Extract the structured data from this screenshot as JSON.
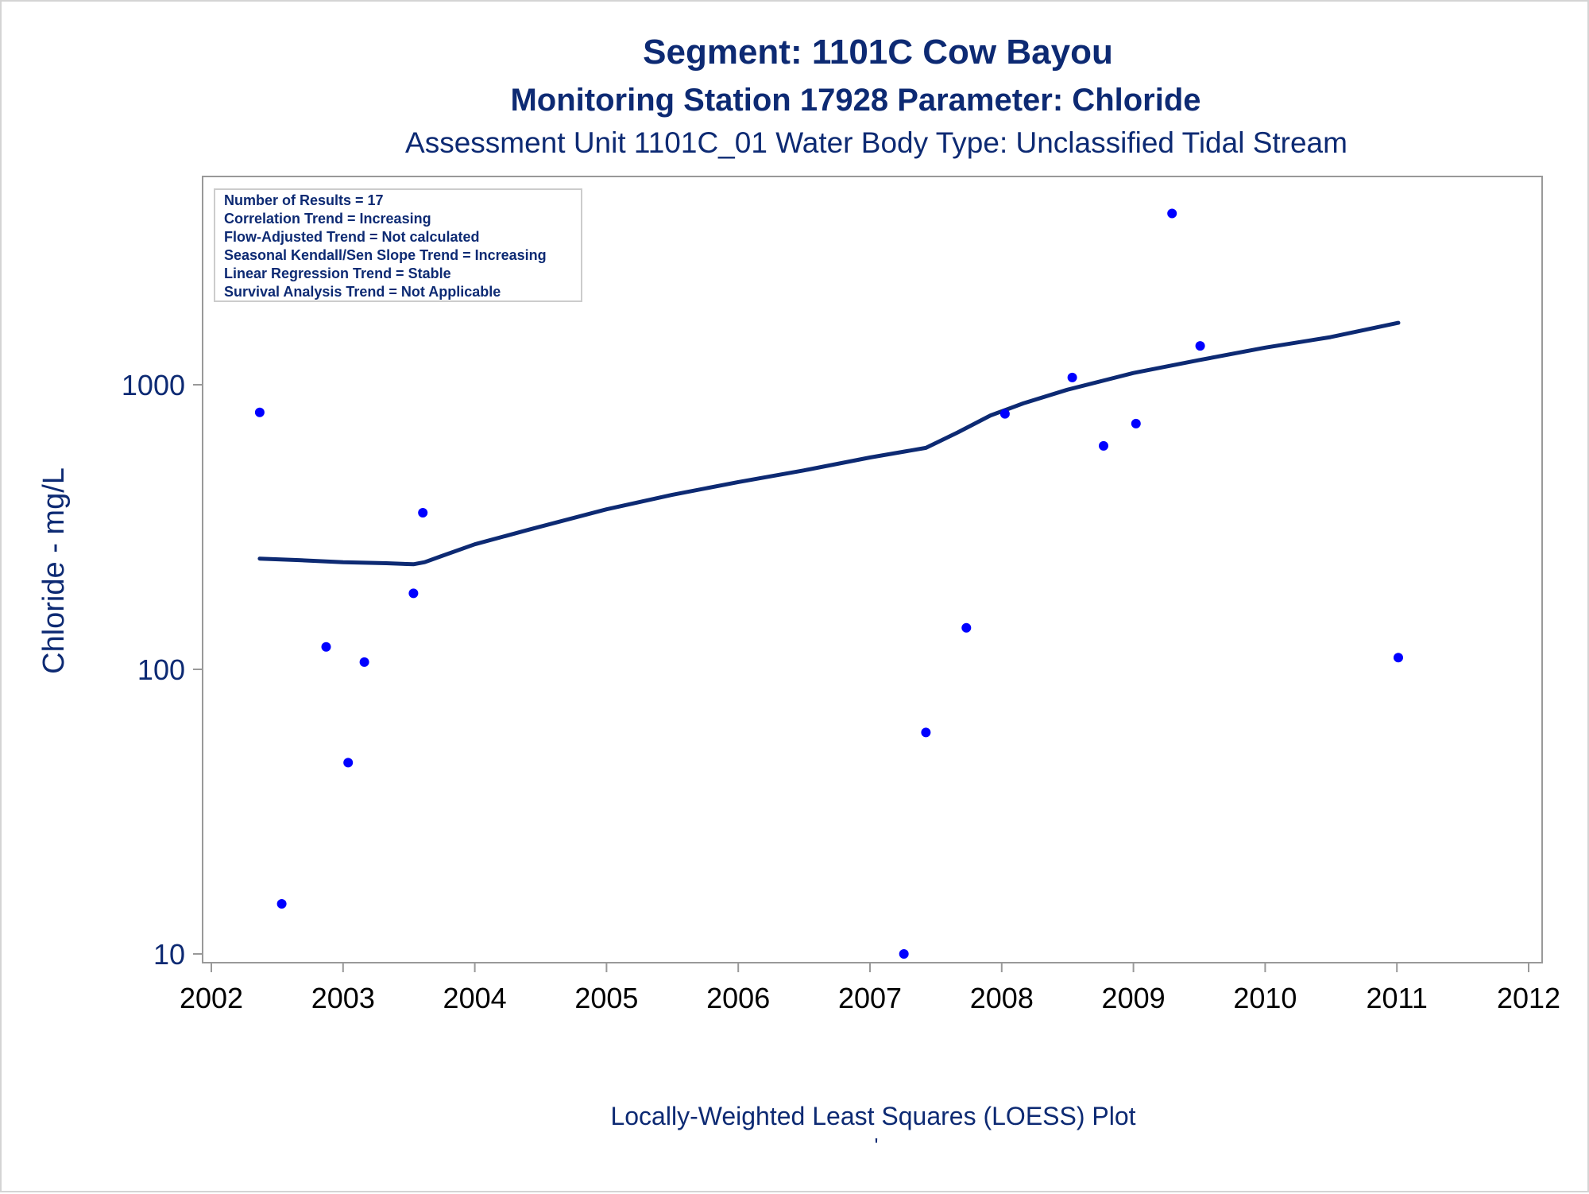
{
  "chart_data": {
    "type": "scatter",
    "title": "Segment: 1101C  Cow Bayou",
    "subtitle": "Monitoring Station 17928 Parameter: Chloride",
    "subtitle2": "Assessment Unit 1101C_01   Water Body Type: Unclassified Tidal Stream",
    "xlabel": "",
    "ylabel": "Chloride - mg/L",
    "footnote": "Locally-Weighted Least Squares (LOESS) Plot",
    "footnote_mark": "'",
    "x_scale": "date",
    "y_scale": "log",
    "xlim": [
      "2002-01-01",
      "2012-01-01"
    ],
    "ylim": [
      9.2,
      4300
    ],
    "x_ticks": [
      "2002",
      "2003",
      "2004",
      "2005",
      "2006",
      "2007",
      "2008",
      "2009",
      "2010",
      "2011",
      "2012"
    ],
    "y_ticks": [
      "10",
      "100",
      "1000"
    ],
    "grid": false,
    "legend": "none",
    "stats_box": {
      "placement": "top-left",
      "lines": [
        "Number of Results = 17",
        "Correlation Trend = Increasing",
        "Flow-Adjusted Trend = Not calculated",
        "Seasonal Kendall/Sen Slope Trend = Increasing",
        "Linear Regression Trend = Stable",
        "Survival Analysis Trend = Not Applicable"
      ]
    },
    "series": [
      {
        "kind": "points",
        "color": "#0000ff",
        "points": [
          {
            "x": "2002-05-15",
            "y": 800
          },
          {
            "x": "2002-07-15",
            "y": 15
          },
          {
            "x": "2002-11-15",
            "y": 120
          },
          {
            "x": "2003-01-15",
            "y": 47
          },
          {
            "x": "2003-03-01",
            "y": 106
          },
          {
            "x": "2003-07-15",
            "y": 185
          },
          {
            "x": "2003-08-10",
            "y": 355
          },
          {
            "x": "2007-04-05",
            "y": 10
          },
          {
            "x": "2007-06-05",
            "y": 60
          },
          {
            "x": "2007-09-25",
            "y": 140
          },
          {
            "x": "2008-01-10",
            "y": 790
          },
          {
            "x": "2008-07-15",
            "y": 1060
          },
          {
            "x": "2008-10-10",
            "y": 610
          },
          {
            "x": "2009-01-08",
            "y": 730
          },
          {
            "x": "2009-04-18",
            "y": 4000
          },
          {
            "x": "2009-07-05",
            "y": 1370
          },
          {
            "x": "2011-01-05",
            "y": 110
          }
        ]
      },
      {
        "kind": "line",
        "color": "#0d2a73",
        "points": [
          {
            "x": "2002-05-15",
            "y": 245
          },
          {
            "x": "2002-09-01",
            "y": 242
          },
          {
            "x": "2003-01-01",
            "y": 238
          },
          {
            "x": "2003-05-01",
            "y": 236
          },
          {
            "x": "2003-07-15",
            "y": 234
          },
          {
            "x": "2003-08-15",
            "y": 238
          },
          {
            "x": "2003-10-01",
            "y": 250
          },
          {
            "x": "2004-01-01",
            "y": 275
          },
          {
            "x": "2004-06-01",
            "y": 310
          },
          {
            "x": "2005-01-01",
            "y": 365
          },
          {
            "x": "2005-07-01",
            "y": 410
          },
          {
            "x": "2006-01-01",
            "y": 455
          },
          {
            "x": "2006-07-01",
            "y": 500
          },
          {
            "x": "2007-01-01",
            "y": 555
          },
          {
            "x": "2007-06-05",
            "y": 600
          },
          {
            "x": "2007-09-01",
            "y": 680
          },
          {
            "x": "2007-12-01",
            "y": 780
          },
          {
            "x": "2008-03-01",
            "y": 860
          },
          {
            "x": "2008-07-01",
            "y": 960
          },
          {
            "x": "2009-01-01",
            "y": 1100
          },
          {
            "x": "2009-07-01",
            "y": 1220
          },
          {
            "x": "2010-01-01",
            "y": 1350
          },
          {
            "x": "2010-07-01",
            "y": 1470
          },
          {
            "x": "2011-01-05",
            "y": 1650
          }
        ]
      }
    ]
  }
}
